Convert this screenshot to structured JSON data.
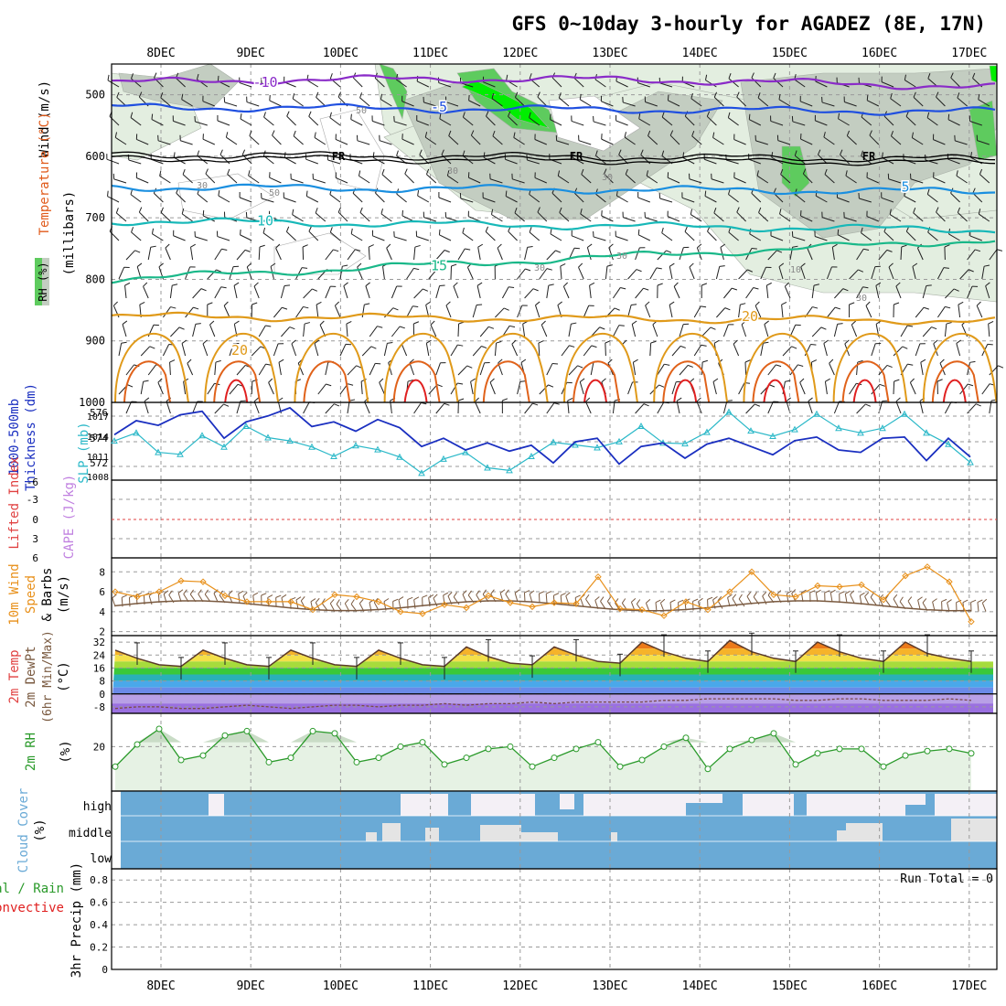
{
  "title": "GFS 0~10day 3-hourly for AGADEZ (8E, 17N)",
  "days": [
    "8DEC",
    "9DEC",
    "10DEC",
    "11DEC",
    "12DEC",
    "13DEC",
    "14DEC",
    "15DEC",
    "16DEC",
    "17DEC"
  ],
  "run_total": "Run Total = 0",
  "colors": {
    "bg": "#ffffff",
    "frame": "#000000",
    "grid": "#9a9a9a",
    "rh_light": "#e3eee0",
    "rh_mid": "#c3cdc1",
    "rh_green": "#5ecb5e",
    "rh_bright": "#00ee00",
    "t_m10": "#8a2bc8",
    "t_m5": "#1f4fe0",
    "t_5": "#1a8fe0",
    "t_10": "#17b8b8",
    "t_15": "#1ab889",
    "t_20": "#e09a1a",
    "t_25": "#e0621a",
    "t_30": "#e02020",
    "thick": "#1a2fc0",
    "slp": "#2ab8c8",
    "li": "#e04040",
    "cape": "#c080e0",
    "wind_speed": "#e8901a",
    "barb": "#7a5a40",
    "rh2m": "#2a9a2a",
    "rh2m_fill": "#e6f2e4",
    "cloud": "#6aaad6",
    "cloud_gap": "#f4f0f6",
    "cloud_mid_gap": "#e4e4e4",
    "precip_total": "#2a9a2a",
    "precip_conv": "#e02020"
  },
  "chart_data": [
    {
      "id": "upper-air",
      "type": "contour",
      "ylabel": "(millibars)",
      "side_labels": [
        "Wind",
        "(m/s)",
        "Temperature",
        "(°C)",
        "RH (%)"
      ],
      "ylim": [
        1000,
        450
      ],
      "y_ticks": [
        500,
        600,
        700,
        800,
        900,
        1000
      ],
      "temperature_contours": [
        {
          "label": "-10",
          "pressure": 480
        },
        {
          "label": "-5",
          "pressure": 520
        },
        {
          "label": "FR",
          "pressure": 600
        },
        {
          "label": "5",
          "pressure": 650
        },
        {
          "label": "10",
          "pressure": 705
        },
        {
          "label": "15",
          "pressure": 800
        },
        {
          "label": "20",
          "pressure": 860
        }
      ],
      "rh_labels": [
        "50",
        "30",
        "30",
        "50",
        "30",
        "30",
        "30",
        "30",
        "10"
      ]
    },
    {
      "id": "thickness-slp",
      "type": "line",
      "ylabel_left": [
        "Thickness (dm)",
        "1000-500mb"
      ],
      "ylabel_right": [
        "SLP (mb)"
      ],
      "left_ticks": [
        "576",
        "574",
        "572"
      ],
      "right_ticks": [
        "1017",
        "1014",
        "1011",
        "1008"
      ],
      "x_days": [
        0,
        0.25,
        0.5,
        0.75,
        1,
        1.25,
        1.5,
        1.75,
        2,
        2.25,
        2.5,
        2.75,
        3,
        3.25,
        3.5,
        3.75,
        4,
        4.25,
        4.5,
        4.75,
        5,
        5.25,
        5.5,
        5.75,
        6,
        6.25,
        6.5,
        6.75,
        7,
        7.25,
        7.5,
        7.75,
        8,
        8.25,
        8.5,
        8.75,
        9,
        9.25,
        9.5,
        9.75
      ],
      "series": [
        {
          "name": "thickness (dm)",
          "values": [
            574.3,
            575.5,
            575.1,
            576.0,
            576.3,
            574.0,
            575.4,
            575.9,
            576.6,
            575.0,
            575.4,
            574.6,
            575.6,
            574.9,
            573.3,
            574.0,
            573.0,
            573.6,
            572.9,
            573.4,
            571.9,
            573.7,
            574.0,
            571.8,
            573.3,
            573.6,
            572.3,
            573.5,
            574.0,
            573.3,
            572.6,
            573.8,
            574.1,
            573.0,
            572.8,
            574.0,
            574.1,
            572.1,
            574.0,
            572.4
          ]
        },
        {
          "name": "SLP (mb)",
          "values": [
            1013.3,
            1014.5,
            1011.6,
            1011.3,
            1014.1,
            1012.4,
            1015.5,
            1013.8,
            1013.3,
            1012.4,
            1011.0,
            1012.6,
            1012.0,
            1010.9,
            1008.5,
            1010.6,
            1011.6,
            1009.3,
            1008.9,
            1011.0,
            1013.1,
            1012.7,
            1012.3,
            1013.2,
            1015.5,
            1013.0,
            1012.9,
            1014.6,
            1017.6,
            1014.8,
            1014.0,
            1015.0,
            1017.3,
            1015.2,
            1014.5,
            1015.2,
            1017.3,
            1014.5,
            1012.8,
            1010.1
          ]
        }
      ]
    },
    {
      "id": "stability",
      "type": "line",
      "ylabel_left": [
        "Lifted Index"
      ],
      "ylabel_right": [
        "CAPE (J/kg)"
      ],
      "y_ticks": [
        "-6",
        "-3",
        "0",
        "3",
        "6"
      ],
      "li_values": [],
      "cape_values": []
    },
    {
      "id": "wind10m",
      "type": "line",
      "ylabel": [
        "10m Wind",
        "Speed",
        "& Barbs",
        "(m/s)"
      ],
      "y_ticks": [
        "8",
        "6",
        "4",
        "2"
      ],
      "ylim": [
        1.6,
        9.4
      ],
      "x_days": [
        0,
        0.25,
        0.5,
        0.75,
        1,
        1.25,
        1.5,
        1.75,
        2,
        2.25,
        2.5,
        2.75,
        3,
        3.25,
        3.5,
        3.75,
        4,
        4.25,
        4.5,
        4.75,
        5,
        5.25,
        5.5,
        5.75,
        6,
        6.25,
        6.5,
        6.75,
        7,
        7.25,
        7.5,
        7.75,
        8,
        8.25,
        8.5,
        8.75,
        9,
        9.25,
        9.5,
        9.75
      ],
      "values": [
        6.0,
        5.5,
        6.0,
        7.1,
        7.0,
        5.6,
        5.0,
        5.0,
        5.0,
        4.2,
        5.7,
        5.5,
        5.0,
        4.0,
        3.8,
        4.7,
        4.4,
        5.6,
        4.9,
        4.5,
        4.9,
        4.8,
        7.5,
        4.3,
        4.2,
        3.6,
        5.0,
        4.2,
        6.0,
        8.0,
        5.7,
        5.5,
        6.6,
        6.5,
        6.7,
        5.2,
        7.6,
        8.5,
        7.0,
        3.0
      ]
    },
    {
      "id": "temp2m",
      "type": "area",
      "ylabel": [
        "2m Temp",
        "2m DewPt",
        "(6hr Min/Max)",
        "(°C)"
      ],
      "y_ticks": [
        "32",
        "24",
        "16",
        "8",
        "0",
        "-8"
      ],
      "ylim": [
        -12,
        36
      ],
      "x_days": [
        0,
        0.25,
        0.5,
        0.75,
        1,
        1.25,
        1.5,
        1.75,
        2,
        2.25,
        2.5,
        2.75,
        3,
        3.25,
        3.5,
        3.75,
        4,
        4.25,
        4.5,
        4.75,
        5,
        5.25,
        5.5,
        5.75,
        6,
        6.25,
        6.5,
        6.75,
        7,
        7.25,
        7.5,
        7.75,
        8,
        8.25,
        8.5,
        8.75,
        9,
        9.25,
        9.5,
        9.75
      ],
      "series": [
        {
          "name": "temperature",
          "values": [
            27,
            22,
            18,
            17,
            27,
            22,
            18,
            17,
            27,
            22,
            18,
            17,
            27,
            22,
            18,
            17,
            29,
            23,
            19,
            18,
            29,
            24,
            20,
            19,
            32,
            26,
            22,
            20,
            33,
            26,
            22,
            20,
            32,
            26,
            22,
            20,
            32,
            25,
            22,
            20
          ]
        },
        {
          "name": "dewpoint",
          "values": [
            -9,
            -8,
            -8,
            -9,
            -9,
            -8,
            -7,
            -8,
            -9,
            -8,
            -7,
            -7,
            -8,
            -7,
            -7,
            -6,
            -7,
            -6,
            -6,
            -5,
            -6,
            -5,
            -5,
            -5,
            -5,
            -4,
            -4,
            -3,
            -3,
            -3,
            -3,
            -4,
            -4,
            -3,
            -3,
            -4,
            -4,
            -4,
            -3,
            -4
          ]
        }
      ]
    },
    {
      "id": "rh2m",
      "type": "area",
      "ylabel": [
        "2m RH",
        "(%)"
      ],
      "y_ticks": [
        "20"
      ],
      "ylim": [
        0,
        35
      ],
      "x_days": [
        0,
        0.25,
        0.5,
        0.75,
        1,
        1.25,
        1.5,
        1.75,
        2,
        2.25,
        2.5,
        2.75,
        3,
        3.25,
        3.5,
        3.75,
        4,
        4.25,
        4.5,
        4.75,
        5,
        5.25,
        5.5,
        5.75,
        6,
        6.25,
        6.5,
        6.75,
        7,
        7.25,
        7.5,
        7.75,
        8,
        8.25,
        8.5,
        8.75,
        9,
        9.25,
        9.5,
        9.75
      ],
      "values": [
        11,
        21,
        28,
        14,
        16,
        25,
        27,
        13,
        15,
        27,
        26,
        13,
        15,
        20,
        22,
        12,
        15,
        19,
        20,
        11,
        15,
        19,
        22,
        11,
        14,
        20,
        24,
        10,
        19,
        23,
        26,
        12,
        17,
        19,
        19,
        11,
        16,
        18,
        19,
        17
      ]
    },
    {
      "id": "cloud-cover",
      "type": "heatmap",
      "ylabel": [
        "Cloud Cover",
        "(%)"
      ],
      "rows": [
        "high",
        "middle",
        "low"
      ]
    },
    {
      "id": "precip",
      "type": "bar",
      "ylabel_left": [
        "Total / Rain",
        "Convective"
      ],
      "ylabel_axis": [
        "3hr Precip (mm)"
      ],
      "y_ticks": [
        "0.8",
        "0.6",
        "0.4",
        "0.2",
        "0"
      ],
      "ylim": [
        0,
        0.9
      ],
      "values": []
    }
  ]
}
